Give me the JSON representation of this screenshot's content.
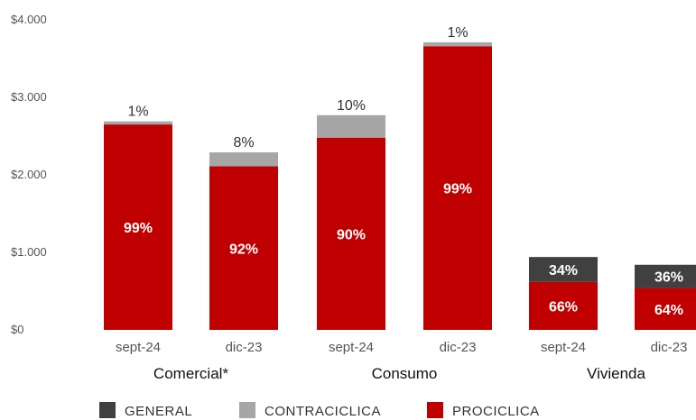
{
  "chart_data": {
    "type": "bar",
    "stacked": true,
    "groups": [
      "Comercial*",
      "Consumo",
      "Vivienda"
    ],
    "categories": [
      "sept-24",
      "dic-23",
      "sept-24",
      "dic-23",
      "sept-24",
      "dic-23"
    ],
    "category_group": [
      0,
      0,
      1,
      1,
      2,
      2
    ],
    "y_ticks": [
      "$0",
      "$1.000",
      "$2.000",
      "$3.000",
      "$4.000"
    ],
    "ylim": [
      0,
      4000
    ],
    "series": [
      {
        "name": "PROCICLICA",
        "color": "#c00000",
        "values": [
          2650,
          2110,
          2480,
          3660,
          620,
          540
        ],
        "labels": [
          "99%",
          "92%",
          "90%",
          "99%",
          "66%",
          "64%"
        ]
      },
      {
        "name": "CONTRACICLICA",
        "color": "#a6a6a6",
        "values": [
          40,
          180,
          290,
          50,
          0,
          0
        ],
        "labels": [
          "1%",
          "8%",
          "10%",
          "1%",
          "",
          ""
        ]
      },
      {
        "name": "GENERAL",
        "color": "#404040",
        "values": [
          0,
          0,
          0,
          0,
          320,
          300
        ],
        "labels": [
          "",
          "",
          "",
          "",
          "34%",
          "36%"
        ]
      }
    ],
    "legend": {
      "placement": "bottom",
      "order": [
        "GENERAL",
        "CONTRACICLICA",
        "PROCICLICA"
      ]
    },
    "grid": false
  }
}
